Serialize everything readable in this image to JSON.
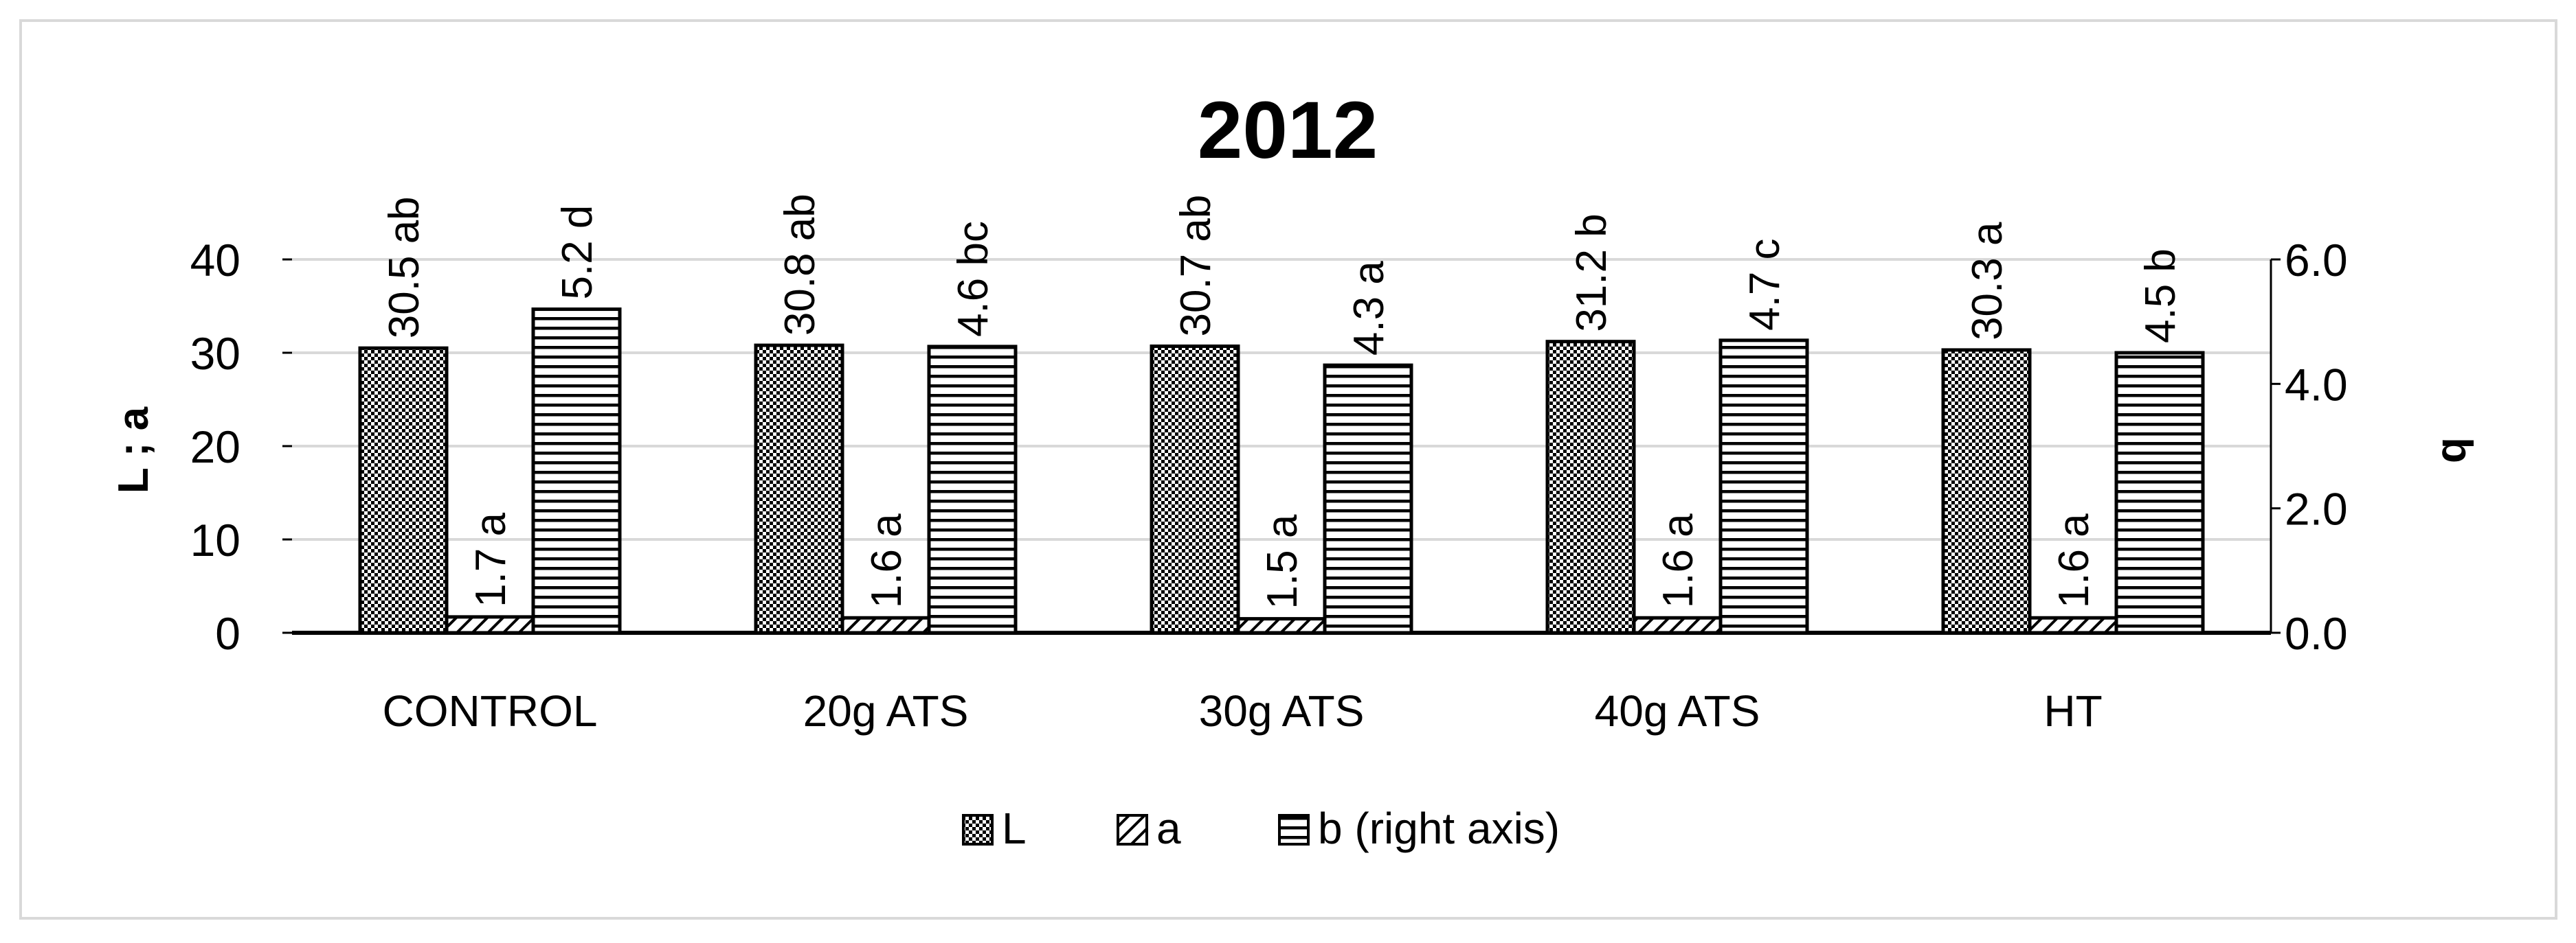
{
  "chart_data": {
    "type": "bar",
    "title": "2012",
    "categories": [
      "CONTROL",
      "20g ATS",
      "30g ATS",
      "40g ATS",
      "HT"
    ],
    "series": [
      {
        "name": "L",
        "axis": "left",
        "pattern": "checkered",
        "values": [
          30.5,
          30.8,
          30.7,
          31.2,
          30.3
        ],
        "labels": [
          "30.5 ab",
          "30.8 ab",
          "30.7 ab",
          "31.2 b",
          "30.3 a"
        ]
      },
      {
        "name": "a",
        "axis": "left",
        "pattern": "diagonal-stripes",
        "values": [
          1.7,
          1.6,
          1.5,
          1.6,
          1.6
        ],
        "labels": [
          "1.7 a",
          "1.6 a",
          "1.5 a",
          "1.6 a",
          "1.6 a"
        ]
      },
      {
        "name": "b (right axis)",
        "axis": "right",
        "pattern": "horizontal-stripes",
        "values": [
          5.2,
          4.6,
          4.3,
          4.7,
          4.5
        ],
        "labels": [
          "5.2 d",
          "4.6 bc",
          "4.3 a",
          "4.7 c",
          "4.5 b"
        ]
      }
    ],
    "y_left": {
      "label": "L ; a",
      "ylim": [
        0,
        40
      ],
      "ticks": [
        "0",
        "10",
        "20",
        "30",
        "40"
      ]
    },
    "y_right": {
      "label": "b",
      "ylim": [
        0,
        6
      ],
      "ticks": [
        "0.0",
        "2.0",
        "4.0",
        "6.0"
      ]
    },
    "xlabel": "",
    "grid": true,
    "legend_position": "bottom",
    "colors": {
      "bar_fill": "#ffffff",
      "bar_stroke": "#000000",
      "grid": "#d9d9d9",
      "border": "#d9d9d9"
    }
  }
}
